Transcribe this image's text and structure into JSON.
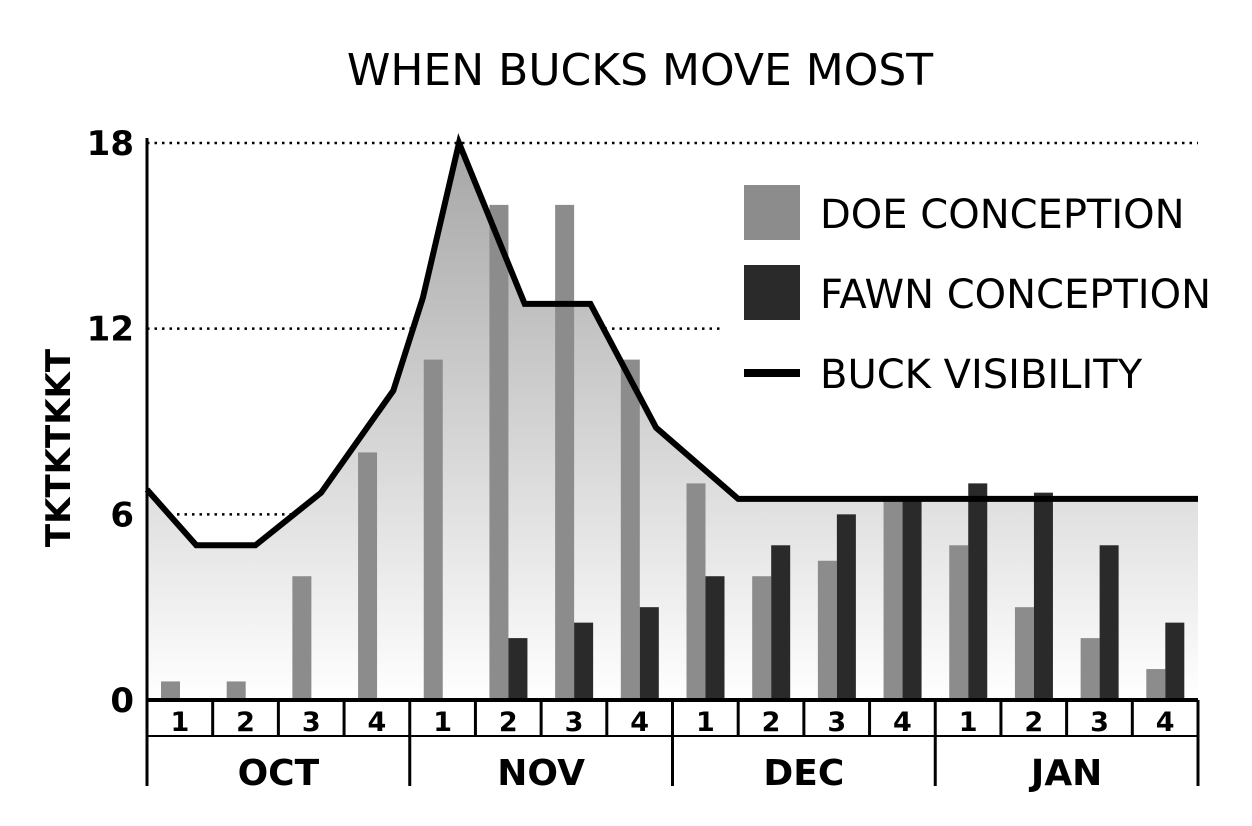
{
  "chart_data": {
    "type": "bar",
    "title": "WHEN BUCKS MOVE MOST",
    "xlabel": "",
    "ylabel": "TKTKTKKT",
    "ylim": [
      0,
      18
    ],
    "yticks": [
      0,
      6,
      12,
      18
    ],
    "grid": "dotted horizontal lines at 6, 12, 18",
    "legend_position": "top-right",
    "months": [
      "OCT",
      "NOV",
      "DEC",
      "JAN"
    ],
    "categories": [
      "1",
      "2",
      "3",
      "4",
      "1",
      "2",
      "3",
      "4",
      "1",
      "2",
      "3",
      "4",
      "1",
      "2",
      "3",
      "4"
    ],
    "series": [
      {
        "name": "DOE CONCEPTION",
        "kind": "bar",
        "color": "#8c8c8c",
        "values": [
          0.6,
          0.6,
          4.0,
          8.0,
          11.0,
          16.0,
          16.0,
          11.0,
          7.0,
          4.0,
          4.5,
          6.5,
          5.0,
          3.0,
          2.0,
          1.0
        ]
      },
      {
        "name": "FAWN CONCEPTION",
        "kind": "bar",
        "color": "#2a2a2a",
        "values": [
          0,
          0,
          0,
          0,
          0,
          2.0,
          2.5,
          3.0,
          4.0,
          5.0,
          6.0,
          6.5,
          7.0,
          6.7,
          5.0,
          2.5
        ]
      },
      {
        "name": "BUCK VISIBILITY",
        "kind": "line",
        "color": "#000000",
        "points": [
          [
            0.0,
            6.8
          ],
          [
            0.75,
            5.0
          ],
          [
            1.65,
            5.0
          ],
          [
            2.65,
            6.7
          ],
          [
            3.75,
            10.0
          ],
          [
            4.2,
            13.0
          ],
          [
            4.75,
            18.0
          ],
          [
            5.75,
            12.8
          ],
          [
            6.75,
            12.8
          ],
          [
            7.75,
            8.8
          ],
          [
            9.0,
            6.5
          ],
          [
            16.0,
            6.5
          ]
        ]
      }
    ]
  }
}
